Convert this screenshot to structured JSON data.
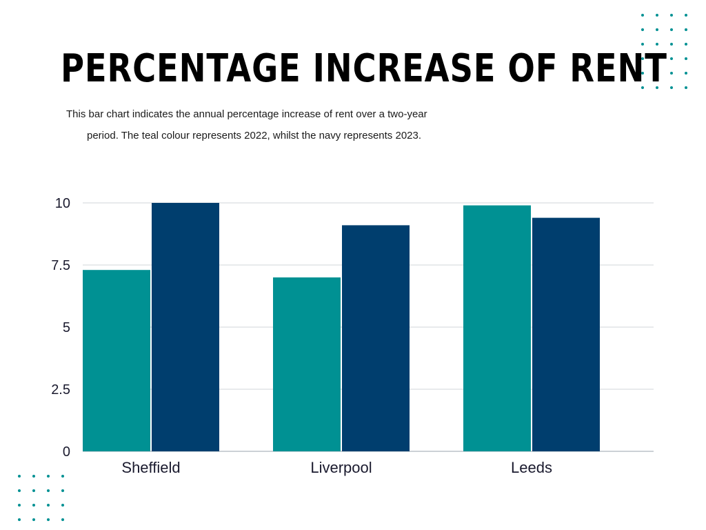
{
  "header": {
    "title": "PERCENTAGE INCREASE OF RENT",
    "subtitle_line1": "This bar chart indicates the annual percentage increase of rent over a two-year",
    "subtitle_line2": "period. The teal colour represents 2022, whilst the navy represents 2023."
  },
  "colors": {
    "accent_teal": "#009193",
    "accent_navy": "#003e6e",
    "dots": "#009193"
  },
  "chart_data": {
    "type": "bar",
    "title": "",
    "xlabel": "",
    "ylabel": "",
    "categories": [
      "Sheffield",
      "Liverpool",
      "Leeds"
    ],
    "series": [
      {
        "values": [
          7.3,
          7.0,
          9.9
        ],
        "color": "#009193"
      },
      {
        "values": [
          10.0,
          9.1,
          9.4
        ],
        "color": "#003e6e"
      }
    ],
    "ylim": [
      0,
      10
    ],
    "yticks": [
      0,
      2.5,
      5,
      7.5,
      10
    ],
    "ytick_labels": [
      "0",
      "2.5",
      "5",
      "7.5",
      "10"
    ],
    "grid": true,
    "legend": "none"
  }
}
